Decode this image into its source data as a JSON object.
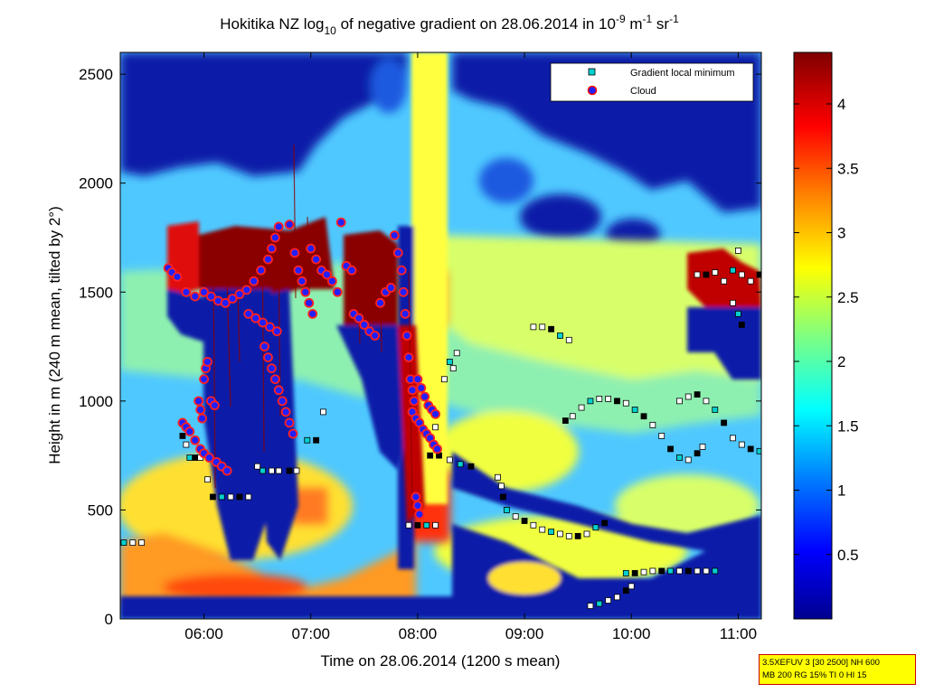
{
  "chart_data": {
    "type": "heatmap",
    "title": {
      "prefix": "Hokitika NZ log",
      "sub": "10",
      "middle": " of negative gradient on 28.06.2014 in 10",
      "sup1": "-9",
      "m": " m",
      "sup2": "-1",
      "sr": " sr",
      "sup3": "-1"
    },
    "xlabel": "Time on 28.06.2014 (1200 s mean)",
    "ylabel": "Height in m (240 m mean, tilted by 2°)",
    "xlim": [
      "05:13",
      "11:13"
    ],
    "ylim": [
      0,
      2600
    ],
    "xticks": [
      "06:00",
      "07:00",
      "08:00",
      "09:00",
      "10:00",
      "11:00"
    ],
    "yticks": [
      0,
      500,
      1000,
      1500,
      2000,
      2500
    ],
    "colorbar": {
      "range": [
        0,
        4.4
      ],
      "ticks": [
        "0.5",
        "1",
        "1.5",
        "2",
        "2.5",
        "3",
        "3.5",
        "4"
      ],
      "colormap": [
        "#00008f",
        "#0000ff",
        "#0080ff",
        "#00ffff",
        "#80ff80",
        "#ffff00",
        "#ff8000",
        "#ff0000",
        "#800000"
      ]
    },
    "legend": {
      "position": "top-right",
      "entries": [
        {
          "label": "Gradient local minimum",
          "marker": "square",
          "color": "#00d0d0"
        },
        {
          "label": "Cloud",
          "marker": "circle",
          "color": "#2020ff",
          "edge": "#ff0000"
        }
      ]
    },
    "series": [
      {
        "name": "Gradient local minimum",
        "points": [
          [
            "05:15",
            350
          ],
          [
            "05:20",
            350
          ],
          [
            "05:25",
            350
          ],
          [
            "05:48",
            840
          ],
          [
            "05:50",
            800
          ],
          [
            "05:52",
            740
          ],
          [
            "05:55",
            740
          ],
          [
            "05:58",
            740
          ],
          [
            "06:02",
            640
          ],
          [
            "06:05",
            560
          ],
          [
            "06:10",
            560
          ],
          [
            "06:15",
            560
          ],
          [
            "06:20",
            560
          ],
          [
            "06:25",
            560
          ],
          [
            "06:30",
            700
          ],
          [
            "06:33",
            680
          ],
          [
            "06:38",
            680
          ],
          [
            "06:42",
            680
          ],
          [
            "06:48",
            680
          ],
          [
            "06:52",
            680
          ],
          [
            "06:58",
            820
          ],
          [
            "07:03",
            820
          ],
          [
            "07:07",
            950
          ],
          [
            "07:55",
            430
          ],
          [
            "08:00",
            430
          ],
          [
            "08:05",
            430
          ],
          [
            "08:10",
            430
          ],
          [
            "08:07",
            750
          ],
          [
            "08:10",
            880
          ],
          [
            "08:15",
            1100
          ],
          [
            "08:18",
            1180
          ],
          [
            "08:20",
            1150
          ],
          [
            "08:22",
            1220
          ],
          [
            "08:12",
            750
          ],
          [
            "08:18",
            730
          ],
          [
            "08:24",
            710
          ],
          [
            "08:30",
            700
          ],
          [
            "08:45",
            650
          ],
          [
            "08:47",
            610
          ],
          [
            "08:48",
            560
          ],
          [
            "08:50",
            500
          ],
          [
            "08:55",
            470
          ],
          [
            "09:00",
            450
          ],
          [
            "09:05",
            430
          ],
          [
            "09:10",
            410
          ],
          [
            "09:15",
            400
          ],
          [
            "09:20",
            390
          ],
          [
            "09:25",
            380
          ],
          [
            "09:30",
            380
          ],
          [
            "09:35",
            390
          ],
          [
            "09:40",
            420
          ],
          [
            "09:45",
            440
          ],
          [
            "09:05",
            1340
          ],
          [
            "09:10",
            1340
          ],
          [
            "09:15",
            1330
          ],
          [
            "09:20",
            1300
          ],
          [
            "09:25",
            1280
          ],
          [
            "09:23",
            910
          ],
          [
            "09:27",
            930
          ],
          [
            "09:32",
            970
          ],
          [
            "09:37",
            1000
          ],
          [
            "09:42",
            1010
          ],
          [
            "09:47",
            1010
          ],
          [
            "09:52",
            1000
          ],
          [
            "09:57",
            990
          ],
          [
            "10:02",
            960
          ],
          [
            "10:07",
            930
          ],
          [
            "10:12",
            890
          ],
          [
            "10:17",
            840
          ],
          [
            "10:22",
            780
          ],
          [
            "10:27",
            740
          ],
          [
            "10:32",
            730
          ],
          [
            "10:37",
            760
          ],
          [
            "10:40",
            790
          ],
          [
            "09:37",
            60
          ],
          [
            "09:42",
            70
          ],
          [
            "09:47",
            85
          ],
          [
            "09:52",
            100
          ],
          [
            "09:57",
            130
          ],
          [
            "10:00",
            150
          ],
          [
            "09:57",
            210
          ],
          [
            "10:02",
            210
          ],
          [
            "10:07",
            215
          ],
          [
            "10:12",
            220
          ],
          [
            "10:17",
            220
          ],
          [
            "10:22",
            220
          ],
          [
            "10:27",
            220
          ],
          [
            "10:32",
            220
          ],
          [
            "10:37",
            220
          ],
          [
            "10:42",
            220
          ],
          [
            "10:47",
            220
          ],
          [
            "10:27",
            1000
          ],
          [
            "10:32",
            1020
          ],
          [
            "10:37",
            1030
          ],
          [
            "10:42",
            1000
          ],
          [
            "10:47",
            960
          ],
          [
            "10:52",
            900
          ],
          [
            "10:57",
            830
          ],
          [
            "11:02",
            800
          ],
          [
            "11:07",
            780
          ],
          [
            "11:12",
            770
          ],
          [
            "10:37",
            1580
          ],
          [
            "10:42",
            1580
          ],
          [
            "10:47",
            1590
          ],
          [
            "10:52",
            1550
          ],
          [
            "10:57",
            1600
          ],
          [
            "11:02",
            1580
          ],
          [
            "11:07",
            1550
          ],
          [
            "11:12",
            1580
          ],
          [
            "10:57",
            1450
          ],
          [
            "11:00",
            1400
          ],
          [
            "11:02",
            1350
          ],
          [
            "11:00",
            1690
          ]
        ]
      },
      {
        "name": "Cloud",
        "points": [
          [
            "05:40",
            1610
          ],
          [
            "05:42",
            1590
          ],
          [
            "05:45",
            1570
          ],
          [
            "05:50",
            1500
          ],
          [
            "05:55",
            1480
          ],
          [
            "05:48",
            900
          ],
          [
            "05:50",
            880
          ],
          [
            "05:52",
            860
          ],
          [
            "05:55",
            820
          ],
          [
            "05:58",
            780
          ],
          [
            "06:00",
            760
          ],
          [
            "06:03",
            740
          ],
          [
            "06:07",
            720
          ],
          [
            "06:10",
            700
          ],
          [
            "06:13",
            680
          ],
          [
            "05:57",
            1000
          ],
          [
            "05:58",
            960
          ],
          [
            "05:59",
            920
          ],
          [
            "06:00",
            1100
          ],
          [
            "06:01",
            1150
          ],
          [
            "06:02",
            1180
          ],
          [
            "06:04",
            1000
          ],
          [
            "06:06",
            980
          ],
          [
            "06:00",
            1500
          ],
          [
            "06:04",
            1480
          ],
          [
            "06:08",
            1460
          ],
          [
            "06:12",
            1450
          ],
          [
            "06:16",
            1470
          ],
          [
            "06:20",
            1490
          ],
          [
            "06:24",
            1510
          ],
          [
            "06:28",
            1550
          ],
          [
            "06:32",
            1600
          ],
          [
            "06:36",
            1650
          ],
          [
            "06:38",
            1700
          ],
          [
            "06:40",
            1750
          ],
          [
            "06:42",
            1800
          ],
          [
            "06:25",
            1400
          ],
          [
            "06:29",
            1380
          ],
          [
            "06:33",
            1360
          ],
          [
            "06:37",
            1340
          ],
          [
            "06:41",
            1320
          ],
          [
            "06:34",
            1250
          ],
          [
            "06:36",
            1200
          ],
          [
            "06:38",
            1150
          ],
          [
            "06:40",
            1100
          ],
          [
            "06:42",
            1050
          ],
          [
            "06:44",
            1000
          ],
          [
            "06:46",
            950
          ],
          [
            "06:48",
            900
          ],
          [
            "06:50",
            850
          ],
          [
            "06:48",
            1810
          ],
          [
            "06:51",
            1680
          ],
          [
            "06:53",
            1600
          ],
          [
            "06:55",
            1550
          ],
          [
            "06:57",
            1500
          ],
          [
            "06:59",
            1450
          ],
          [
            "07:01",
            1400
          ],
          [
            "07:00",
            1700
          ],
          [
            "07:03",
            1650
          ],
          [
            "07:06",
            1600
          ],
          [
            "07:09",
            1580
          ],
          [
            "07:12",
            1550
          ],
          [
            "07:15",
            1500
          ],
          [
            "07:17",
            1820
          ],
          [
            "07:20",
            1620
          ],
          [
            "07:23",
            1600
          ],
          [
            "07:24",
            1400
          ],
          [
            "07:27",
            1380
          ],
          [
            "07:30",
            1350
          ],
          [
            "07:33",
            1320
          ],
          [
            "07:36",
            1300
          ],
          [
            "07:39",
            1450
          ],
          [
            "07:42",
            1500
          ],
          [
            "07:45",
            1520
          ],
          [
            "07:47",
            1760
          ],
          [
            "07:49",
            1680
          ],
          [
            "07:51",
            1600
          ],
          [
            "07:52",
            1500
          ],
          [
            "07:53",
            1400
          ],
          [
            "07:54",
            1300
          ],
          [
            "07:55",
            1200
          ],
          [
            "07:56",
            1100
          ],
          [
            "07:57",
            1050
          ],
          [
            "07:58",
            1000
          ],
          [
            "07:57",
            950
          ],
          [
            "07:59",
            920
          ],
          [
            "08:01",
            900
          ],
          [
            "08:03",
            870
          ],
          [
            "08:05",
            850
          ],
          [
            "08:07",
            830
          ],
          [
            "08:09",
            800
          ],
          [
            "08:11",
            780
          ],
          [
            "08:00",
            1100
          ],
          [
            "08:02",
            1060
          ],
          [
            "08:04",
            1020
          ],
          [
            "08:06",
            980
          ],
          [
            "08:08",
            960
          ],
          [
            "08:10",
            940
          ],
          [
            "07:59",
            560
          ],
          [
            "08:00",
            520
          ],
          [
            "08:01",
            480
          ]
        ]
      }
    ]
  },
  "info_box": {
    "line1": "3.5XEFUV 3 [30 2500] NH 600",
    "line2": "MB 200 RG 15% TI 0 HI 15"
  }
}
